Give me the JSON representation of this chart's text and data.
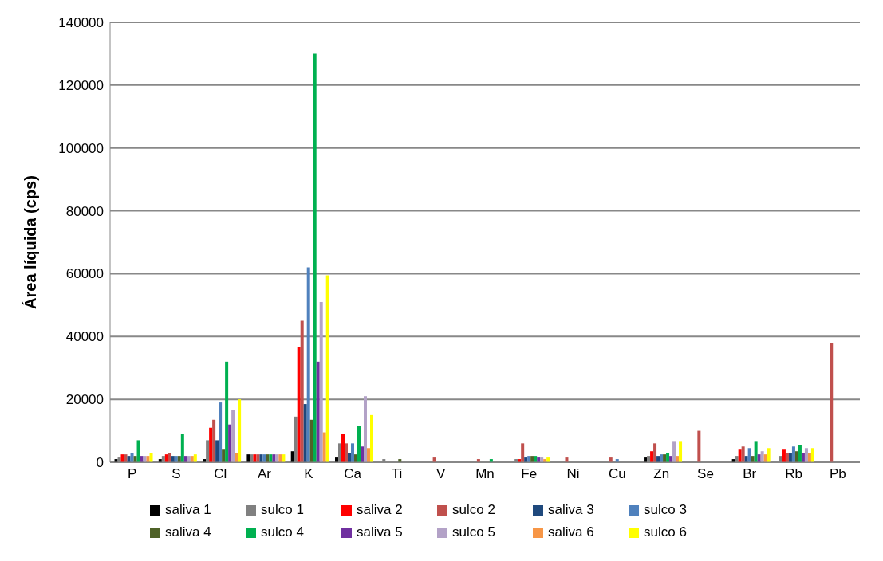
{
  "chart_data": {
    "type": "bar",
    "ylabel": "Área líquida (cps)",
    "categories": [
      "P",
      "S",
      "Cl",
      "Ar",
      "K",
      "Ca",
      "Ti",
      "V",
      "Mn",
      "Fe",
      "Ni",
      "Cu",
      "Zn",
      "Se",
      "Br",
      "Rb",
      "Pb"
    ],
    "series": [
      {
        "name": "saliva 1",
        "color": "#000000",
        "values": [
          1000,
          1000,
          1000,
          2500,
          3500,
          1500,
          null,
          null,
          null,
          null,
          null,
          null,
          1500,
          null,
          1000,
          null,
          null
        ]
      },
      {
        "name": "sulco 1",
        "color": "#808080",
        "values": [
          1500,
          2000,
          7000,
          2500,
          14500,
          6000,
          1000,
          null,
          null,
          1000,
          null,
          null,
          2000,
          null,
          2000,
          2000,
          null
        ]
      },
      {
        "name": "saliva 2",
        "color": "#ff0000",
        "values": [
          2500,
          2500,
          11000,
          2500,
          36500,
          9000,
          null,
          null,
          null,
          1000,
          null,
          null,
          3500,
          null,
          4000,
          4000,
          null
        ]
      },
      {
        "name": "sulco 2",
        "color": "#c0504d",
        "values": [
          2500,
          3000,
          13500,
          2500,
          45000,
          6000,
          null,
          1500,
          1000,
          6000,
          1500,
          1500,
          6000,
          10000,
          5000,
          3000,
          38000
        ]
      },
      {
        "name": "saliva 3",
        "color": "#1f497d",
        "values": [
          2000,
          2000,
          7000,
          2500,
          18500,
          3000,
          null,
          null,
          null,
          1500,
          null,
          null,
          2000,
          null,
          2000,
          3000,
          null
        ]
      },
      {
        "name": "sulco 3",
        "color": "#4f81bd",
        "values": [
          3000,
          2000,
          19000,
          2500,
          62000,
          6000,
          null,
          null,
          null,
          2000,
          null,
          1000,
          2500,
          null,
          4500,
          5000,
          null
        ]
      },
      {
        "name": "saliva 4",
        "color": "#4f6228",
        "values": [
          2000,
          2000,
          4000,
          2500,
          13500,
          2500,
          1000,
          null,
          null,
          2000,
          null,
          null,
          2500,
          null,
          2000,
          3500,
          null
        ]
      },
      {
        "name": "sulco 4",
        "color": "#00b050",
        "values": [
          7000,
          9000,
          32000,
          2500,
          130000,
          11500,
          null,
          null,
          1000,
          2000,
          null,
          null,
          3000,
          null,
          6500,
          5500,
          null
        ]
      },
      {
        "name": "saliva 5",
        "color": "#7030a0",
        "values": [
          2000,
          2000,
          12000,
          2500,
          32000,
          5000,
          null,
          null,
          null,
          1500,
          null,
          null,
          2000,
          null,
          2500,
          3000,
          null
        ]
      },
      {
        "name": "sulco 5",
        "color": "#b3a2c7",
        "values": [
          2000,
          2000,
          16500,
          2500,
          51000,
          21000,
          null,
          null,
          null,
          1500,
          null,
          null,
          6500,
          null,
          3500,
          4500,
          null
        ]
      },
      {
        "name": "saliva 6",
        "color": "#f79646",
        "values": [
          2000,
          2000,
          3000,
          2500,
          9500,
          4500,
          null,
          null,
          null,
          1000,
          null,
          null,
          2000,
          null,
          2500,
          3000,
          null
        ]
      },
      {
        "name": "sulco 6",
        "color": "#ffff00",
        "values": [
          3000,
          2500,
          20000,
          2500,
          59500,
          15000,
          null,
          null,
          null,
          1500,
          null,
          null,
          6500,
          null,
          4500,
          4500,
          null
        ]
      }
    ],
    "ylim": [
      0,
      140000
    ],
    "yticks": [
      0,
      20000,
      40000,
      60000,
      80000,
      100000,
      120000,
      140000
    ],
    "grid": "y",
    "legend": "bottom"
  }
}
